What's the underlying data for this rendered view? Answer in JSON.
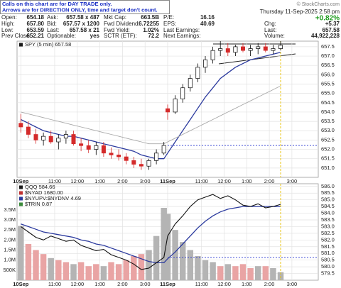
{
  "quote_panel": {
    "notice": [
      "Calls on this chart are for DAY TRADE only.",
      "Arrows are for DIRECTION ONLY, time and target don't count."
    ],
    "copyright": "© StockCharts.com",
    "fields": [
      [
        [
          "Open:",
          "654.18"
        ],
        [
          "High:",
          "657.80"
        ],
        [
          "Low:",
          "653.59"
        ],
        [
          "Prev Close:",
          "652.21"
        ]
      ],
      [
        [
          "Ask:",
          "657.58 x 487"
        ],
        [
          "Bid:",
          "657.57 x 1200"
        ],
        [
          "Last:",
          "657.58 x 21"
        ],
        [
          "Optionable:",
          "yes"
        ]
      ],
      [
        [
          "Mkt Cap:",
          "663.5B"
        ],
        [
          "Fwd Dividend:",
          "6.72255"
        ],
        [
          "Fwd Yield:",
          "1.02%"
        ],
        [
          "SCTR (ETF):",
          "72.2"
        ]
      ],
      [
        [
          "P/E:",
          "16.16"
        ],
        [
          "EPS:",
          "40.69"
        ],
        [
          "Last Earnings:"
        ],
        [
          "Next Earnings:"
        ]
      ]
    ],
    "date": "Thursday 11-Sep-2025 2:58 pm",
    "change_pct": "+0.82%",
    "right_fields": [
      [
        "Chg:",
        "+5.37"
      ],
      [
        "Last:",
        "657.58"
      ],
      [
        "Volume:",
        "44,922,228"
      ]
    ]
  },
  "chart_data": [
    {
      "type": "candlestick",
      "legend": "SPY (5 min) 657.58",
      "legend_color": "#1a1a1a",
      "x": [
        0,
        4,
        8,
        12,
        16,
        20,
        24,
        28,
        32,
        36,
        40,
        44,
        48,
        52,
        56,
        60,
        64,
        68,
        72,
        76,
        78,
        82,
        86,
        90,
        94,
        98,
        102,
        106,
        110,
        114,
        118,
        122,
        126,
        130,
        134,
        138
      ],
      "open": [
        653.4,
        653.2,
        652.8,
        652.5,
        652.7,
        652.4,
        652.6,
        652.8,
        652.3,
        652.2,
        652.0,
        652.2,
        651.8,
        651.7,
        651.6,
        651.4,
        651.2,
        651.1,
        651.4,
        651.8,
        654.18,
        654.0,
        654.7,
        655.3,
        655.8,
        656.4,
        656.8,
        657.3,
        657.4,
        657.2,
        657.5,
        657.3,
        657.4,
        657.5,
        657.3,
        657.4
      ],
      "high": [
        653.9,
        653.5,
        653.1,
        652.9,
        653.0,
        652.8,
        653.0,
        653.0,
        652.6,
        652.5,
        652.4,
        652.4,
        652.1,
        652.0,
        651.8,
        651.6,
        651.5,
        651.5,
        652.0,
        652.4,
        654.4,
        654.9,
        655.5,
        656.0,
        656.6,
        657.0,
        657.5,
        657.8,
        657.7,
        657.6,
        657.7,
        657.6,
        657.7,
        657.7,
        657.6,
        657.8
      ],
      "low": [
        652.9,
        652.6,
        652.3,
        652.2,
        652.3,
        652.0,
        652.3,
        652.2,
        651.9,
        651.8,
        651.7,
        651.6,
        651.5,
        651.4,
        651.2,
        651.0,
        650.9,
        650.9,
        651.2,
        651.7,
        653.59,
        653.9,
        654.5,
        655.1,
        655.6,
        656.1,
        656.6,
        657.0,
        657.0,
        657.0,
        657.2,
        657.0,
        657.1,
        657.2,
        657.1,
        657.3
      ],
      "close": [
        653.2,
        652.8,
        652.5,
        652.7,
        652.4,
        652.6,
        652.8,
        652.3,
        652.2,
        652.0,
        652.2,
        651.8,
        651.7,
        651.6,
        651.4,
        651.2,
        651.1,
        651.4,
        651.8,
        652.21,
        654.0,
        654.7,
        655.3,
        655.8,
        656.4,
        656.8,
        657.3,
        657.4,
        657.2,
        657.5,
        657.3,
        657.4,
        657.5,
        657.3,
        657.4,
        657.58
      ],
      "up_color": "#000000",
      "down_color": "#d42a2a",
      "overlays": [
        {
          "color": "#2b3a9e",
          "values": [
            653.6,
            653.4,
            653.2,
            653.0,
            652.9,
            652.8,
            652.7,
            652.7,
            652.6,
            652.5,
            652.4,
            652.3,
            652.2,
            652.1,
            652.0,
            651.9,
            651.7,
            651.6,
            651.5,
            651.5,
            651.8,
            652.4,
            653.0,
            653.6,
            654.2,
            654.8,
            655.3,
            655.8,
            656.1,
            656.4,
            656.6,
            656.8,
            656.9,
            657.0,
            657.1,
            657.2
          ]
        },
        {
          "color": "#a8a8a8",
          "values": [
            654.0,
            653.9,
            653.8,
            653.7,
            653.6,
            653.5,
            653.4,
            653.3,
            653.2,
            653.1,
            653.0,
            652.9,
            652.8,
            652.7,
            652.6,
            652.5,
            652.4,
            652.3,
            652.3,
            652.3,
            652.4,
            652.6,
            652.8,
            653.0,
            653.2,
            653.4,
            653.6,
            653.8,
            654.0,
            654.2,
            654.4,
            654.6,
            654.8,
            655.0,
            655.2,
            655.4
          ]
        }
      ],
      "hline": 652.21,
      "xlim": [
        -2,
        158
      ],
      "xticks": [
        {
          "value": 0,
          "label": "10Sep"
        },
        {
          "value": 18,
          "label": "11:00"
        },
        {
          "value": 30,
          "label": "12:00"
        },
        {
          "value": 42,
          "label": "1:00"
        },
        {
          "value": 54,
          "label": "2:00"
        },
        {
          "value": 66,
          "label": "3:00"
        },
        {
          "value": 78,
          "label": "11Sep"
        },
        {
          "value": 96,
          "label": "11:00"
        },
        {
          "value": 108,
          "label": "12:00"
        },
        {
          "value": 120,
          "label": "1:00"
        },
        {
          "value": 132,
          "label": "2:00"
        },
        {
          "value": 144,
          "label": "3:00"
        }
      ],
      "ylim": [
        650.5,
        657.8
      ],
      "yticks": [
        {
          "value": 651,
          "label": "651.0"
        },
        651.5,
        {
          "value": 652,
          "label": "652.0"
        },
        652.5,
        {
          "value": 653,
          "label": "653.0"
        },
        653.5,
        {
          "value": 654,
          "label": "654.0"
        },
        654.5,
        {
          "value": 655,
          "label": "655.0"
        },
        655.5,
        {
          "value": 656,
          "label": "656.0"
        },
        656.5,
        {
          "value": 657,
          "label": "657.0"
        },
        657.5
      ],
      "grid": true
    },
    {
      "type": "line",
      "legend": [
        "QQQ 584.66",
        "$NYAD 1680.00",
        "$NYUPV:$NYDNV 4.69",
        "$TRIN 0.87"
      ],
      "legend_colors": [
        "#1a1a1a",
        "#c03030",
        "#2b3a9e",
        "#3a8a3a"
      ],
      "x": [
        0,
        4,
        8,
        12,
        16,
        20,
        24,
        28,
        32,
        36,
        40,
        44,
        48,
        52,
        56,
        60,
        64,
        68,
        72,
        76,
        78,
        82,
        86,
        90,
        94,
        98,
        102,
        106,
        110,
        114,
        118,
        122,
        126,
        130,
        134,
        138
      ],
      "series": [
        {
          "color": "#111111",
          "values": [
            583.0,
            582.6,
            582.2,
            582.0,
            582.3,
            582.1,
            581.9,
            582.0,
            581.6,
            581.4,
            581.2,
            581.3,
            580.9,
            580.7,
            580.5,
            580.2,
            579.8,
            579.9,
            580.3,
            580.7,
            582.3,
            583.2,
            583.8,
            584.5,
            585.0,
            585.2,
            585.4,
            585.1,
            585.3,
            585.0,
            584.6,
            584.5,
            584.7,
            584.4,
            584.5,
            584.66
          ]
        }
      ],
      "overlays": [
        {
          "color": "#2b3a9e",
          "values": [
            583.2,
            583.0,
            582.8,
            582.6,
            582.5,
            582.4,
            582.3,
            582.2,
            582.0,
            581.9,
            581.7,
            581.6,
            581.4,
            581.2,
            581.0,
            580.8,
            580.6,
            580.4,
            580.3,
            580.3,
            580.6,
            581.1,
            581.7,
            582.3,
            582.9,
            583.4,
            583.8,
            584.1,
            584.3,
            584.4,
            584.5,
            584.5,
            584.5,
            584.5,
            584.5,
            584.5
          ]
        }
      ],
      "volume": {
        "axis": "y2",
        "up_color": "#b4b4b4",
        "down_color": "#e9a4a4",
        "values": [
          2700000,
          1800000,
          1500000,
          1300000,
          1100000,
          1000000,
          900000,
          800000,
          900000,
          700000,
          800000,
          700000,
          900000,
          800000,
          1000000,
          1200000,
          1300000,
          1500000,
          2200000,
          3600000,
          3300000,
          2500000,
          1900000,
          1500000,
          1200000,
          1000000,
          900000,
          700000,
          800000,
          700000,
          800000,
          600000,
          700000,
          700000,
          600000,
          400000
        ]
      },
      "hline": 580.7,
      "xlim": [
        -2,
        158
      ],
      "xticks": [
        {
          "value": 0,
          "label": "10Sep"
        },
        {
          "value": 18,
          "label": "11:00"
        },
        {
          "value": 30,
          "label": "12:00"
        },
        {
          "value": 42,
          "label": "1:00"
        },
        {
          "value": 54,
          "label": "2:00"
        },
        {
          "value": 66,
          "label": "3:00"
        },
        {
          "value": 78,
          "label": "11Sep"
        },
        {
          "value": 96,
          "label": "11:00"
        },
        {
          "value": 108,
          "label": "12:00"
        },
        {
          "value": 120,
          "label": "1:00"
        },
        {
          "value": 132,
          "label": "2:00"
        },
        {
          "value": 144,
          "label": "3:00"
        }
      ],
      "ylim": [
        579.0,
        586.2
      ],
      "yticks": [
        579.5,
        {
          "value": 580,
          "label": "580.0"
        },
        580.5,
        {
          "value": 581,
          "label": "581.0"
        },
        581.5,
        {
          "value": 582,
          "label": "582.0"
        },
        582.5,
        {
          "value": 583,
          "label": "583.0"
        },
        583.5,
        {
          "value": 584,
          "label": "584.0"
        },
        584.5,
        {
          "value": 585,
          "label": "585.0"
        },
        585.5,
        {
          "value": 586,
          "label": "586.0"
        }
      ],
      "y2lim": [
        0,
        4800000
      ],
      "y2ticks": [
        {
          "value": 500000,
          "label": "500K"
        },
        {
          "value": 1000000,
          "label": "1.0M"
        },
        {
          "value": 1500000,
          "label": "1.5M"
        },
        {
          "value": 2000000,
          "label": "2.0M"
        },
        {
          "value": 2500000,
          "label": "2.5M"
        },
        {
          "value": 3000000,
          "label": "3.0M"
        },
        {
          "value": 3500000,
          "label": "3.5M"
        }
      ],
      "grid": true
    }
  ]
}
